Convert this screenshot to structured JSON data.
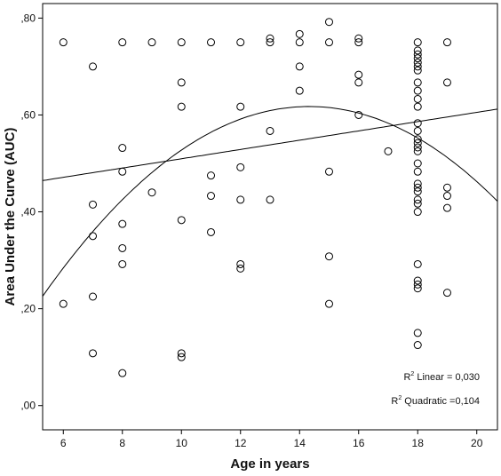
{
  "chart_data": {
    "type": "scatter",
    "xlabel": "Age in years",
    "ylabel": "Area Under the Curve (AUC)",
    "xlim": [
      5.3,
      20.7
    ],
    "ylim": [
      -0.05,
      0.83
    ],
    "x_ticks": [
      6,
      8,
      10,
      12,
      14,
      16,
      18,
      20
    ],
    "y_ticks": [
      0.0,
      0.2,
      0.4,
      0.6,
      0.8
    ],
    "y_tick_labels": [
      ",00",
      ",20",
      ",40",
      ",60",
      ",80"
    ],
    "grid": false,
    "marker": "open-circle",
    "points": [
      {
        "x": 6,
        "y": 0.75
      },
      {
        "x": 6,
        "y": 0.21
      },
      {
        "x": 7,
        "y": 0.7
      },
      {
        "x": 7,
        "y": 0.415
      },
      {
        "x": 7,
        "y": 0.35
      },
      {
        "x": 7,
        "y": 0.225
      },
      {
        "x": 7,
        "y": 0.108
      },
      {
        "x": 8,
        "y": 0.75
      },
      {
        "x": 8,
        "y": 0.532
      },
      {
        "x": 8,
        "y": 0.483
      },
      {
        "x": 8,
        "y": 0.375
      },
      {
        "x": 8,
        "y": 0.325
      },
      {
        "x": 8,
        "y": 0.292
      },
      {
        "x": 8,
        "y": 0.067
      },
      {
        "x": 9,
        "y": 0.75
      },
      {
        "x": 9,
        "y": 0.44
      },
      {
        "x": 10,
        "y": 0.75
      },
      {
        "x": 10,
        "y": 0.667
      },
      {
        "x": 10,
        "y": 0.617
      },
      {
        "x": 10,
        "y": 0.383
      },
      {
        "x": 10,
        "y": 0.108
      },
      {
        "x": 10,
        "y": 0.1
      },
      {
        "x": 11,
        "y": 0.75
      },
      {
        "x": 11,
        "y": 0.475
      },
      {
        "x": 11,
        "y": 0.433
      },
      {
        "x": 11,
        "y": 0.358
      },
      {
        "x": 12,
        "y": 0.75
      },
      {
        "x": 12,
        "y": 0.617
      },
      {
        "x": 12,
        "y": 0.492
      },
      {
        "x": 12,
        "y": 0.425
      },
      {
        "x": 12,
        "y": 0.292
      },
      {
        "x": 12,
        "y": 0.283
      },
      {
        "x": 13,
        "y": 0.758
      },
      {
        "x": 13,
        "y": 0.75
      },
      {
        "x": 13,
        "y": 0.567
      },
      {
        "x": 13,
        "y": 0.425
      },
      {
        "x": 14,
        "y": 0.767
      },
      {
        "x": 14,
        "y": 0.75
      },
      {
        "x": 14,
        "y": 0.7
      },
      {
        "x": 14,
        "y": 0.65
      },
      {
        "x": 15,
        "y": 0.792
      },
      {
        "x": 15,
        "y": 0.75
      },
      {
        "x": 15,
        "y": 0.483
      },
      {
        "x": 15,
        "y": 0.308
      },
      {
        "x": 15,
        "y": 0.21
      },
      {
        "x": 16,
        "y": 0.758
      },
      {
        "x": 16,
        "y": 0.75
      },
      {
        "x": 16,
        "y": 0.683
      },
      {
        "x": 16,
        "y": 0.667
      },
      {
        "x": 16,
        "y": 0.6
      },
      {
        "x": 17,
        "y": 0.525
      },
      {
        "x": 18,
        "y": 0.75
      },
      {
        "x": 18,
        "y": 0.733
      },
      {
        "x": 18,
        "y": 0.725
      },
      {
        "x": 18,
        "y": 0.717
      },
      {
        "x": 18,
        "y": 0.708
      },
      {
        "x": 18,
        "y": 0.7
      },
      {
        "x": 18,
        "y": 0.692
      },
      {
        "x": 18,
        "y": 0.667
      },
      {
        "x": 18,
        "y": 0.65
      },
      {
        "x": 18,
        "y": 0.633
      },
      {
        "x": 18,
        "y": 0.617
      },
      {
        "x": 18,
        "y": 0.583
      },
      {
        "x": 18,
        "y": 0.567
      },
      {
        "x": 18,
        "y": 0.55
      },
      {
        "x": 18,
        "y": 0.542
      },
      {
        "x": 18,
        "y": 0.533
      },
      {
        "x": 18,
        "y": 0.525
      },
      {
        "x": 18,
        "y": 0.5
      },
      {
        "x": 18,
        "y": 0.483
      },
      {
        "x": 18,
        "y": 0.458
      },
      {
        "x": 18,
        "y": 0.45
      },
      {
        "x": 18,
        "y": 0.442
      },
      {
        "x": 18,
        "y": 0.425
      },
      {
        "x": 18,
        "y": 0.417
      },
      {
        "x": 18,
        "y": 0.4
      },
      {
        "x": 18,
        "y": 0.292
      },
      {
        "x": 18,
        "y": 0.258
      },
      {
        "x": 18,
        "y": 0.25
      },
      {
        "x": 18,
        "y": 0.242
      },
      {
        "x": 18,
        "y": 0.15
      },
      {
        "x": 18,
        "y": 0.125
      },
      {
        "x": 19,
        "y": 0.75
      },
      {
        "x": 19,
        "y": 0.667
      },
      {
        "x": 19,
        "y": 0.45
      },
      {
        "x": 19,
        "y": 0.433
      },
      {
        "x": 19,
        "y": 0.408
      },
      {
        "x": 19,
        "y": 0.233
      }
    ],
    "fit_lines": [
      {
        "type": "linear",
        "intercept": 0.4138,
        "slope": 0.00958
      },
      {
        "type": "quadratic",
        "a": -0.3695,
        "b": 0.1378,
        "c": -0.00481
      }
    ],
    "annotations": [
      {
        "prefix": "R",
        "sup": "2",
        "text": " Linear = 0,030"
      },
      {
        "prefix": "R",
        "sup": "2",
        "text": " Quadratic =0,104"
      }
    ]
  }
}
